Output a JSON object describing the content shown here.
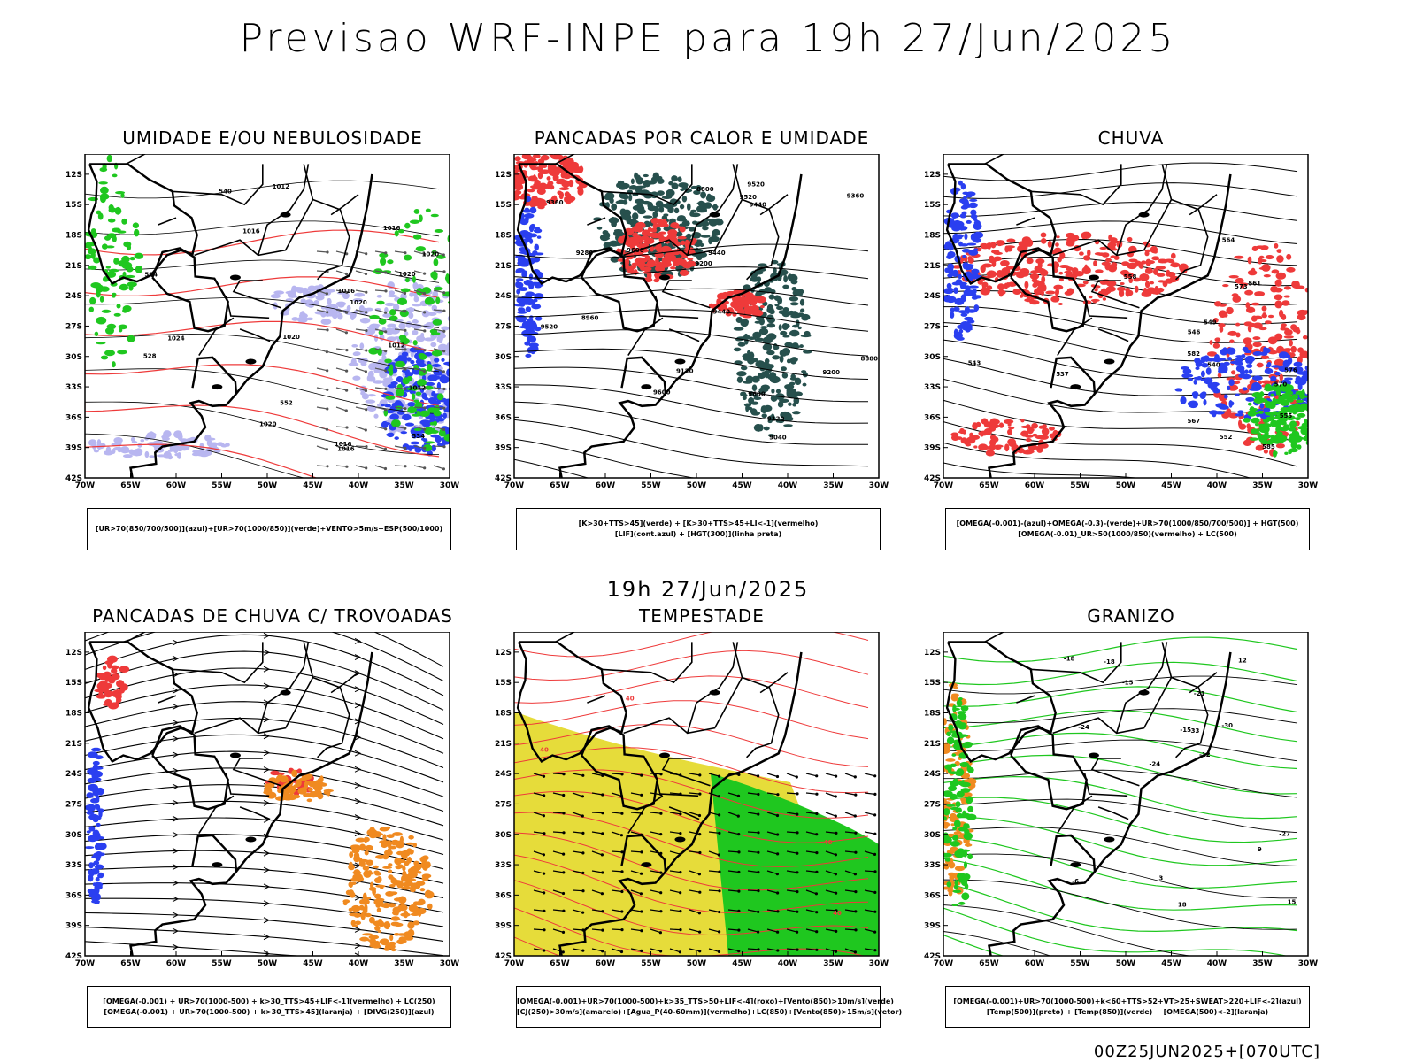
{
  "title": "Previsao WRF-INPE  para 19h 27/Jun/2025",
  "mid_title": "19h 27/Jun/2025",
  "footer": "00Z25JUN2025+[070UTC]",
  "axes": {
    "x_ticks": [
      "70W",
      "65W",
      "60W",
      "55W",
      "50W",
      "45W",
      "40W",
      "35W",
      "30W"
    ],
    "y_ticks": [
      "12S",
      "15S",
      "18S",
      "21S",
      "24S",
      "27S",
      "30S",
      "33S",
      "36S",
      "39S",
      "42S"
    ]
  },
  "colors": {
    "green": "#1fc71f",
    "red": "#ee3a3a",
    "blue": "#2a3ff0",
    "lightblue": "#b8b6f0",
    "teal": "#27504d",
    "orange": "#f08a20",
    "yellow": "#e6dc3a"
  },
  "panels": [
    {
      "title": "UMIDADE E/OU NEBULOSIDADE",
      "legend": [
        "[UR>70(850/700/500)](azul)+[UR>70(1000/850)](verde)+VENTO>5m/s+ESP(500/1000)"
      ],
      "labels": [
        "1012",
        "1012",
        "1016",
        "1020",
        "1016",
        "1016",
        "1020",
        "1024",
        "1020",
        "1020",
        "1012",
        "1016",
        "1020",
        "1016",
        "552",
        "564",
        "528",
        "540",
        "534"
      ]
    },
    {
      "title": "PANCADAS POR CALOR E UMIDADE",
      "legend": [
        "[K>30+TTS>45](verde) + [K>30+TTS>45+LI<-1](vermelho)",
        "[LIF](cont.azul) + [HGT(300)](linha preta)"
      ],
      "labels": [
        "9600",
        "9520",
        "9600",
        "9440",
        "9520",
        "9360",
        "9280",
        "9200",
        "9440",
        "9360",
        "9200",
        "9120",
        "9040",
        "8960",
        "8880",
        "8800",
        "9520",
        "9440",
        "9120",
        "9600"
      ]
    },
    {
      "title": "CHUVA",
      "legend": [
        "[OMEGA(-0.001)-(azul)+OMEGA(-0.3)-(verde)+UR>70(1000/850/700/500)] + HGT(500)",
        "[OMEGA(-0.01)_UR>50(1000/850)(vermelho) + LC(500)"
      ],
      "labels": [
        "582",
        "576",
        "573",
        "570",
        "567",
        "564",
        "561",
        "558",
        "555",
        "552",
        "549",
        "546",
        "543",
        "540",
        "537",
        "585"
      ]
    },
    {
      "title": "PANCADAS DE CHUVA C/ TROVOADAS",
      "legend": [
        "[OMEGA(-0.001) + UR>70(1000-500) + k>30_TTS>45+LIF<-1](vermelho) + LC(250)",
        "[OMEGA(-0.001) + UR>70(1000-500) + k>30_TTS>45](laranja) + [DIVG(250)](azul)"
      ],
      "labels": []
    },
    {
      "title": "TEMPESTADE",
      "legend": [
        "[OMEGA(-0.001)+UR>70(1000-500)+k>35_TTS>50+LIF<-4](roxo)+[Vento(850)>10m/s](verde)",
        "[CJ(250)>30m/s](amarelo)+[Agua_P(40-60mm)](vermelho)+LC(850)+[Vento(850)>15m/s](vetor)"
      ],
      "labels": [
        "40",
        "40",
        "40",
        "40"
      ]
    },
    {
      "title": "GRANIZO",
      "legend": [
        "[OMEGA(-0.001)+UR>70(1000-500)+k<60+TTS>52+VT>25+SWEAT>220+LIF<-2](azul)",
        "[Temp(500)](preto) + [Temp(850)](verde) + [OMEGA(500)<-2](laranja)"
      ],
      "labels": [
        "-12",
        "-15",
        "-18",
        "-21",
        "-24",
        "-27",
        "-30",
        "-33",
        "-15",
        "-18",
        "-24",
        "-6",
        "3",
        "9",
        "12",
        "15",
        "18"
      ]
    }
  ]
}
